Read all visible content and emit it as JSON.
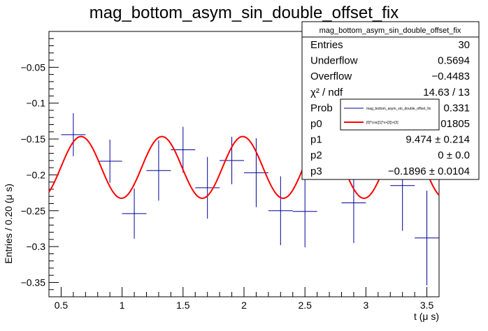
{
  "chart_data": {
    "type": "scatter",
    "title": "mag_bottom_asym_sin_double_offset_fix",
    "xlabel": "t (μ s)",
    "ylabel": "Entries / 0.20 (μ s)",
    "xlim": [
      0.4,
      3.6
    ],
    "ylim": [
      -0.37,
      0.0
    ],
    "x_ticks": [
      0.5,
      1,
      1.5,
      2,
      2.5,
      3,
      3.5
    ],
    "x_tick_labels": [
      "0.5",
      "1",
      "1.5",
      "2",
      "2.5",
      "3",
      "3.5"
    ],
    "y_ticks": [
      -0.35,
      -0.3,
      -0.25,
      -0.2,
      -0.15,
      -0.1,
      -0.05
    ],
    "y_tick_labels": [
      "−0.35",
      "−0.3",
      "−0.25",
      "−0.2",
      "−0.15",
      "−0.1",
      "−0.05"
    ],
    "bin_width": 0.2,
    "series": [
      {
        "name": "mag_bottom_asym_sin_double_offset_fix",
        "color": "#000099",
        "points": [
          {
            "x": 0.6,
            "y": -0.144,
            "yerr": 0.03
          },
          {
            "x": 0.9,
            "y": -0.181,
            "yerr": 0.03
          },
          {
            "x": 1.1,
            "y": -0.254,
            "yerr": 0.035
          },
          {
            "x": 1.3,
            "y": -0.194,
            "yerr": 0.042
          },
          {
            "x": 1.5,
            "y": -0.165,
            "yerr": 0.032
          },
          {
            "x": 1.7,
            "y": -0.218,
            "yerr": 0.043
          },
          {
            "x": 1.9,
            "y": -0.18,
            "yerr": 0.033
          },
          {
            "x": 2.1,
            "y": -0.197,
            "yerr": 0.048
          },
          {
            "x": 2.3,
            "y": -0.25,
            "yerr": 0.048
          },
          {
            "x": 2.5,
            "y": -0.251,
            "yerr": 0.05
          },
          {
            "x": 2.9,
            "y": -0.239,
            "yerr": 0.056
          },
          {
            "x": 3.3,
            "y": -0.215,
            "yerr": 0.063
          },
          {
            "x": 3.5,
            "y": -0.288,
            "yerr": 0.066
          }
        ]
      },
      {
        "name": "[0]*cos([1]*x+[2])+[3]",
        "color": "#ff0000",
        "type": "line",
        "function": {
          "p0": 0.04305,
          "p1": 9.474,
          "p2": 0.0,
          "p3": -0.1896,
          "x_range": [
            0.4,
            3.6
          ]
        }
      }
    ],
    "legend": {
      "placement": "top-right",
      "entries": [
        "mag_bottom_asym_sin_double_offset_fix",
        "[0]*cos([1]*x+[2])+[3]"
      ]
    },
    "stats_box": {
      "placement": "top-right",
      "title": "mag_bottom_asym_sin_double_offset_fix",
      "rows": [
        {
          "label": "Entries",
          "value": "30"
        },
        {
          "label": "Underflow",
          "value": "0.5694"
        },
        {
          "label": "Overflow",
          "value": "−0.4483"
        },
        {
          "label": "χ² / ndf",
          "value": "14.63 / 13"
        },
        {
          "label": "Prob",
          "value": "0.331"
        },
        {
          "label": "p0",
          "value": "01805"
        },
        {
          "label": "p1",
          "value": "9.474 ± 0.214"
        },
        {
          "label": "p2",
          "value": "0 ± 0.0"
        },
        {
          "label": "p3",
          "value": "−0.1896 ± 0.0104"
        }
      ]
    },
    "grid": false
  }
}
